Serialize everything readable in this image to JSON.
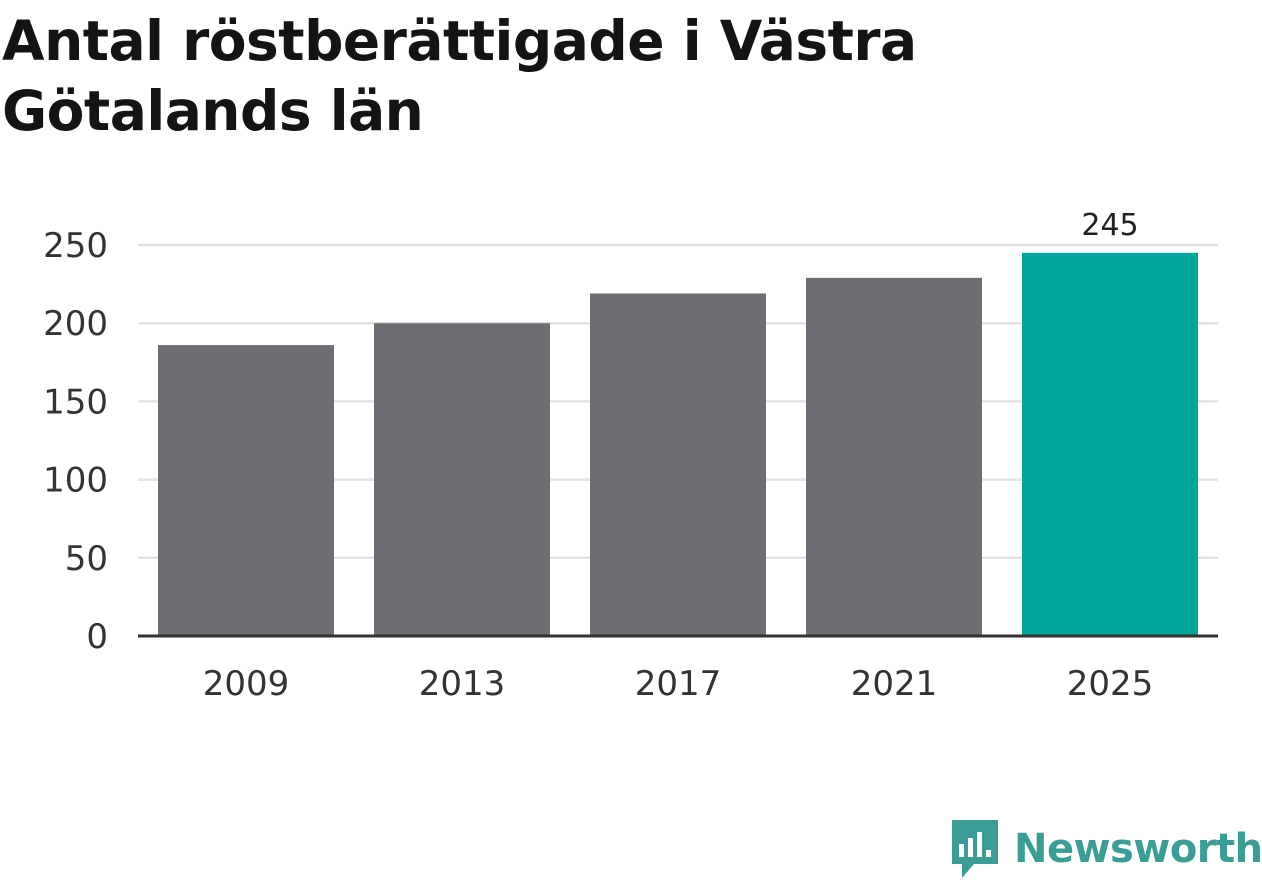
{
  "title": "Antal röstberättigade i Västra Götalands län",
  "brand": {
    "name": "Newsworthy",
    "color": "#3a9e97",
    "icon": "newsworthy-logo-icon"
  },
  "chart_data": {
    "type": "bar",
    "title": "Antal röstberättigade i Västra Götalands län",
    "xlabel": "",
    "ylabel": "",
    "categories": [
      "2009",
      "2013",
      "2017",
      "2021",
      "2025"
    ],
    "values": [
      186,
      200,
      219,
      229,
      245
    ],
    "ylim": [
      0,
      250
    ],
    "yticks": [
      0,
      50,
      100,
      150,
      200,
      250
    ],
    "grid": true,
    "legend": "none",
    "colors": {
      "default": "#6e6d73",
      "highlight": "#00a59a",
      "grid": "#e2e2e2",
      "axis": "#333333"
    },
    "highlight_index": 4,
    "data_labels": [
      null,
      null,
      null,
      null,
      "245"
    ]
  }
}
